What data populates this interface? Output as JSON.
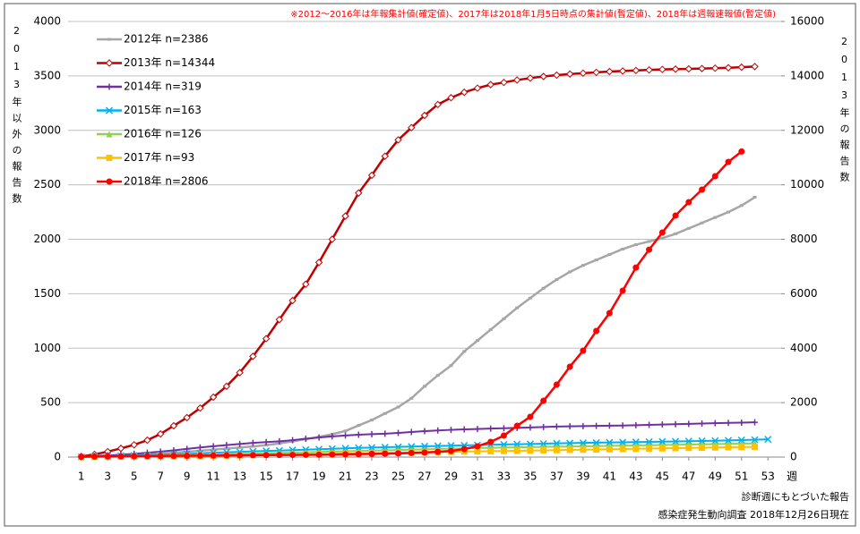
{
  "chart_data": {
    "type": "line",
    "note": "※2012～2016年は年報集計値(確定値)、2017年は2018年1月5日時点の集計値(暫定値)、2018年は週報速報値(暫定値)",
    "y_label": "2013年以外の報告数",
    "y2_label": "2013年の報告数",
    "x_label": "週",
    "footnotes": [
      "診断週にもとづいた報告",
      "感染症発生動向調査 2018年12月26日現在"
    ],
    "x": [
      1,
      2,
      3,
      4,
      5,
      6,
      7,
      8,
      9,
      10,
      11,
      12,
      13,
      14,
      15,
      16,
      17,
      18,
      19,
      20,
      21,
      22,
      23,
      24,
      25,
      26,
      27,
      28,
      29,
      30,
      31,
      32,
      33,
      34,
      35,
      36,
      37,
      38,
      39,
      40,
      41,
      42,
      43,
      44,
      45,
      46,
      47,
      48,
      49,
      50,
      51,
      52,
      53
    ],
    "xlim": [
      0,
      54
    ],
    "xticks": [
      1,
      3,
      5,
      7,
      9,
      11,
      13,
      15,
      17,
      19,
      21,
      23,
      25,
      27,
      29,
      31,
      33,
      35,
      37,
      39,
      41,
      43,
      45,
      47,
      49,
      51,
      53
    ],
    "ylim": [
      0,
      4000
    ],
    "yticks": [
      0,
      500,
      1000,
      1500,
      2000,
      2500,
      3000,
      3500,
      4000
    ],
    "y2lim": [
      0,
      16000
    ],
    "y2ticks": [
      0,
      2000,
      4000,
      6000,
      8000,
      10000,
      12000,
      14000,
      16000
    ],
    "grid": true,
    "legend": "upper left",
    "series": [
      {
        "name": "2012年 n=2386",
        "color": "#a6a6a6",
        "marker": "dash",
        "values": [
          5,
          8,
          12,
          16,
          20,
          26,
          32,
          40,
          48,
          58,
          68,
          78,
          88,
          98,
          110,
          125,
          145,
          165,
          185,
          210,
          240,
          290,
          340,
          400,
          460,
          540,
          650,
          750,
          840,
          970,
          1070,
          1170,
          1270,
          1370,
          1460,
          1550,
          1630,
          1700,
          1760,
          1810,
          1860,
          1910,
          1950,
          1980,
          2010,
          2050,
          2100,
          2150,
          2200,
          2250,
          2310,
          2386,
          null
        ]
      },
      {
        "name": "2013年 n=14344",
        "color": "#c00000",
        "marker": "diamond",
        "axis": "y2",
        "values": [
          20,
          100,
          200,
          320,
          450,
          620,
          850,
          1150,
          1450,
          1800,
          2200,
          2600,
          3100,
          3700,
          4350,
          5050,
          5750,
          6350,
          7150,
          8000,
          8850,
          9700,
          10350,
          11050,
          11650,
          12100,
          12550,
          12950,
          13200,
          13400,
          13550,
          13680,
          13760,
          13850,
          13920,
          13980,
          14030,
          14070,
          14100,
          14130,
          14160,
          14180,
          14200,
          14220,
          14240,
          14250,
          14260,
          14270,
          14285,
          14300,
          14320,
          14344,
          null
        ]
      },
      {
        "name": "2014年 n=319",
        "color": "#7030a0",
        "marker": "plus",
        "values": [
          5,
          10,
          15,
          22,
          30,
          40,
          50,
          62,
          75,
          88,
          100,
          110,
          120,
          130,
          138,
          145,
          155,
          168,
          180,
          190,
          198,
          205,
          210,
          215,
          222,
          230,
          238,
          244,
          250,
          255,
          258,
          262,
          265,
          268,
          272,
          276,
          280,
          282,
          284,
          286,
          288,
          290,
          293,
          296,
          299,
          302,
          305,
          308,
          311,
          314,
          316,
          319,
          null
        ]
      },
      {
        "name": "2015年 n=163",
        "color": "#00b0f0",
        "marker": "x",
        "values": [
          2,
          5,
          8,
          11,
          14,
          18,
          22,
          26,
          30,
          35,
          40,
          44,
          48,
          52,
          56,
          60,
          64,
          68,
          72,
          76,
          80,
          84,
          87,
          90,
          93,
          96,
          99,
          102,
          105,
          108,
          110,
          113,
          116,
          118,
          120,
          123,
          126,
          128,
          130,
          132,
          134,
          136,
          138,
          140,
          142,
          144,
          146,
          148,
          150,
          153,
          156,
          159,
          163
        ]
      },
      {
        "name": "2016年 n=126",
        "color": "#92d050",
        "marker": "triangle",
        "values": [
          1,
          3,
          5,
          7,
          9,
          11,
          13,
          15,
          17,
          20,
          23,
          26,
          29,
          32,
          35,
          38,
          41,
          44,
          47,
          50,
          53,
          56,
          59,
          62,
          65,
          68,
          71,
          74,
          77,
          80,
          83,
          85,
          87,
          89,
          91,
          93,
          95,
          97,
          99,
          101,
          103,
          105,
          107,
          109,
          111,
          113,
          115,
          117,
          119,
          121,
          123,
          126,
          null
        ]
      },
      {
        "name": "2017年 n=93",
        "color": "#ffc000",
        "marker": "square",
        "values": [
          1,
          2,
          3,
          4,
          5,
          6,
          7,
          8,
          9,
          10,
          12,
          14,
          16,
          18,
          20,
          22,
          24,
          26,
          28,
          30,
          32,
          34,
          36,
          38,
          40,
          42,
          44,
          46,
          48,
          50,
          52,
          54,
          56,
          58,
          60,
          62,
          64,
          66,
          68,
          70,
          72,
          74,
          76,
          78,
          80,
          82,
          84,
          86,
          88,
          90,
          92,
          93,
          null
        ]
      },
      {
        "name": "2018年 n=2806",
        "color": "#ff0000",
        "marker": "circle",
        "values": [
          3,
          5,
          6,
          7,
          8,
          9,
          10,
          11,
          12,
          13,
          14,
          15,
          16,
          17,
          18,
          19,
          20,
          21,
          22,
          24,
          26,
          28,
          30,
          32,
          34,
          38,
          42,
          48,
          56,
          74,
          99,
          140,
          197,
          287,
          370,
          517,
          665,
          830,
          977,
          1158,
          1322,
          1528,
          1740,
          1905,
          2062,
          2218,
          2341,
          2456,
          2579,
          2710,
          2806,
          null,
          null
        ]
      }
    ]
  }
}
